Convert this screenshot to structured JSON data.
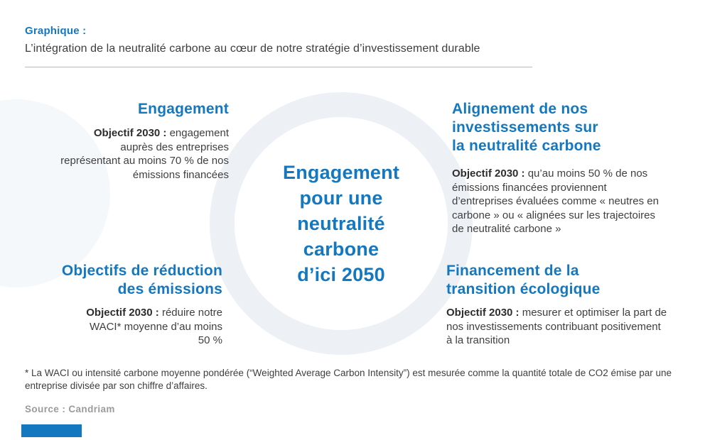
{
  "colors": {
    "brand_blue": "#1478c0",
    "ring": "#edf1f6",
    "text_dark": "#3d3d3d",
    "muted_gray": "#9b9b9b"
  },
  "header": {
    "label": "Graphique :",
    "subtitle": "L’intégration de la neutralité carbone au cœur de notre stratégie d’investissement durable"
  },
  "center_circle": {
    "lines": [
      "Engagement",
      "pour une",
      "neutralité",
      "carbone",
      "d’ici 2050"
    ]
  },
  "quadrants": {
    "top_left": {
      "title_lines": [
        "Engagement"
      ],
      "objective_label": "Objectif 2030 :",
      "objective_text": " engagement auprès des entreprises représentant au moins 70 % de nos émissions financées"
    },
    "top_right": {
      "title_lines": [
        "Alignement de nos",
        "investissements sur",
        "la neutralité carbone"
      ],
      "objective_label": "Objectif 2030 :",
      "objective_text": " qu’au moins 50 % de nos émissions financées proviennent d’entreprises évaluées comme « neutres en carbone » ou « alignées sur les trajectoires de neutralité carbone »"
    },
    "bottom_left": {
      "title_lines": [
        "Objectifs de réduction",
        "des émissions"
      ],
      "objective_label": "Objectif 2030 :",
      "objective_text": " réduire notre WACI* moyenne d’au moins 50 %"
    },
    "bottom_right": {
      "title_lines": [
        "Financement de la",
        "transition écologique"
      ],
      "objective_label": "Objectif 2030 :",
      "objective_text": " mesurer et optimiser la part de nos investissements contribuant positivement à la transition"
    }
  },
  "footnote": "* La WACI ou intensité carbone moyenne pondérée (“Weighted Average Carbon Intensity”) est mesurée comme la quantité totale de CO2 émise par une entreprise divisée par son chiffre d’affaires.",
  "source": "Source : Candriam"
}
